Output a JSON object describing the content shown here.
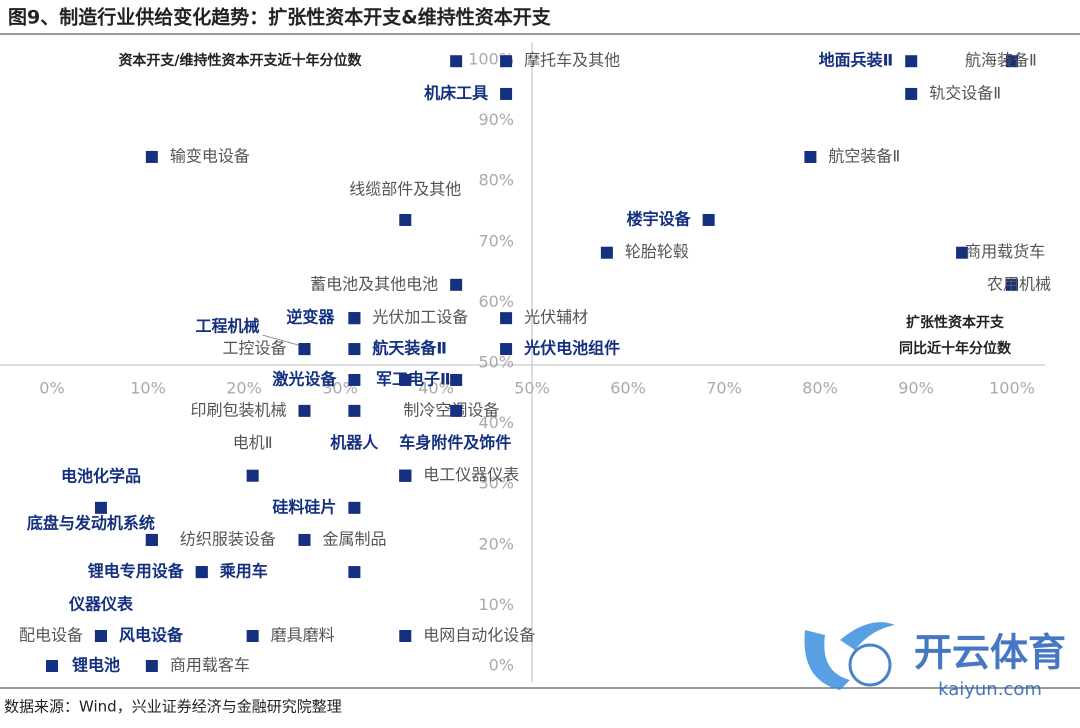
{
  "chart_data": {
    "type": "scatter",
    "title": "图9、制造行业供给变化趋势：扩张性资本开支&维持性资本开支",
    "y_label": "资本开支/维持性资本开支近十年分位数",
    "x_label": [
      "扩张性资本开支",
      "同比近十年分位数"
    ],
    "source": "数据来源：Wind，兴业证券经济与金融研究院整理",
    "watermark": [
      "开云体育",
      "kaiyun.com"
    ],
    "color": "#14307e",
    "xlim": [
      0,
      100
    ],
    "ylim": [
      0,
      100
    ],
    "xticks": [
      {
        "value": 0,
        "label": "0%"
      },
      {
        "value": 10,
        "label": "10%"
      },
      {
        "value": 20,
        "label": "20%"
      },
      {
        "value": 30,
        "label": "30%"
      },
      {
        "value": 40,
        "label": "40%"
      },
      {
        "value": 50,
        "label": "50%"
      },
      {
        "value": 60,
        "label": "60%"
      },
      {
        "value": 70,
        "label": "70%"
      },
      {
        "value": 80,
        "label": "80%"
      },
      {
        "value": 90,
        "label": "90%"
      },
      {
        "value": 100,
        "label": "100%"
      }
    ],
    "yticks": [
      {
        "value": 0,
        "label": "0%"
      },
      {
        "value": 10,
        "label": "10%"
      },
      {
        "value": 20,
        "label": "20%"
      },
      {
        "value": 30,
        "label": "30%"
      },
      {
        "value": 40,
        "label": "40%"
      },
      {
        "value": 50,
        "label": "50%"
      },
      {
        "value": 60,
        "label": "60%"
      },
      {
        "value": 70,
        "label": "70%"
      },
      {
        "value": 80,
        "label": "80%"
      },
      {
        "value": 90,
        "label": "90%"
      },
      {
        "value": 100,
        "label": "100%"
      }
    ],
    "labels": [
      null,
      "摩托车及其他",
      "机床工具",
      "地面兵装Ⅱ",
      "航海装备Ⅱ",
      "轨交设备Ⅱ",
      "输变电设备",
      "航空装备Ⅱ",
      "线缆部件及其他",
      "楼宇设备",
      "轮胎轮毂",
      "商用载货车",
      "农用机械",
      "蓄电池及其他电池",
      "逆变器",
      "光伏加工设备",
      "光伏辅材",
      "工程机械",
      "工控设备",
      "航天装备Ⅱ",
      "光伏电池组件",
      "激光设备",
      "军工电子Ⅱ",
      null,
      "印刷包装机械",
      "制冷空调设备",
      null,
      "电机Ⅱ",
      "机器人",
      "车身附件及饰件",
      "电工仪器仪表",
      "电池化学品",
      "硅料硅片",
      "底盘与发动机系统",
      "纺织服装设备",
      "金属制品",
      "锂电专用设备",
      "乘用车",
      null,
      "仪器仪表",
      "配电设备",
      "风电设备",
      "磨具磨料",
      "电网自动化设备",
      "锂电池",
      "商用载客车"
    ],
    "x": [
      42.1,
      47.3,
      47.3,
      89.5,
      100,
      89.5,
      10.4,
      79.0,
      36.8,
      68.4,
      57.8,
      94.8,
      100,
      42.1,
      31.5,
      31.5,
      47.3,
      26.3,
      26.3,
      31.5,
      47.3,
      31.5,
      36.8,
      42.1,
      26.3,
      31.5,
      42.1,
      20.9,
      36.8,
      36.8,
      36.8,
      5.1,
      31.5,
      10.4,
      10.4,
      26.3,
      15.6,
      15.6,
      31.5,
      5.1,
      5.1,
      5.1,
      20.9,
      36.8,
      0,
      10.4
    ],
    "y": [
      99.8,
      99.8,
      94.4,
      99.8,
      99.8,
      94.4,
      84.0,
      84.0,
      73.6,
      73.6,
      68.2,
      68.2,
      62.9,
      62.9,
      57.4,
      57.4,
      57.4,
      52.3,
      52.3,
      52.3,
      52.3,
      47.2,
      47.2,
      47.2,
      42.1,
      42.1,
      42.1,
      31.4,
      31.4,
      31.4,
      31.4,
      26.1,
      26.1,
      20.8,
      20.8,
      20.8,
      15.5,
      15.5,
      15.5,
      4.95,
      4.95,
      4.95,
      4.95,
      4.95,
      0,
      0
    ],
    "label_bold": [
      false,
      false,
      true,
      true,
      false,
      false,
      false,
      false,
      false,
      true,
      false,
      false,
      false,
      false,
      true,
      false,
      false,
      true,
      false,
      true,
      true,
      true,
      true,
      false,
      false,
      false,
      false,
      false,
      true,
      true,
      false,
      true,
      true,
      true,
      false,
      false,
      true,
      true,
      false,
      true,
      false,
      true,
      false,
      false,
      true,
      false
    ]
  }
}
